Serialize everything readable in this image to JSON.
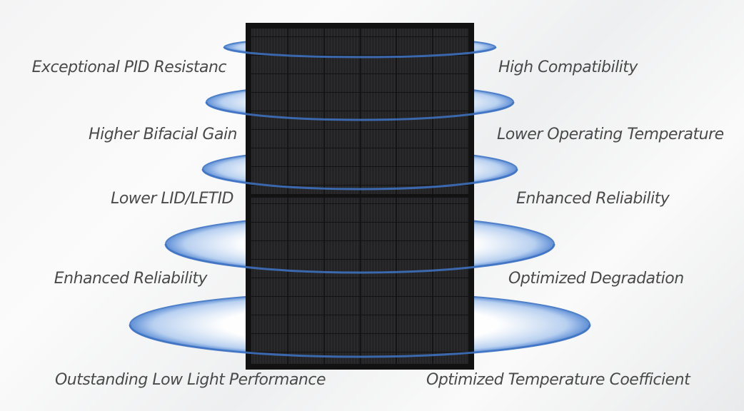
{
  "left_features": [
    "Exceptional PID Resistanc",
    "Higher Bifacial Gain",
    "Lower LID/LETID",
    "Enhanced Reliability",
    "Outstanding Low Light Performance"
  ],
  "right_features": [
    "High Compatibility",
    "Lower Operating Temperature",
    "Enhanced Reliability",
    "Optimized Degradation",
    "Optimized Temperature Coefficient"
  ],
  "colors": {
    "ring": "#3f74c4",
    "panel": "#1c1c1e",
    "text": "#4a4a4a"
  }
}
